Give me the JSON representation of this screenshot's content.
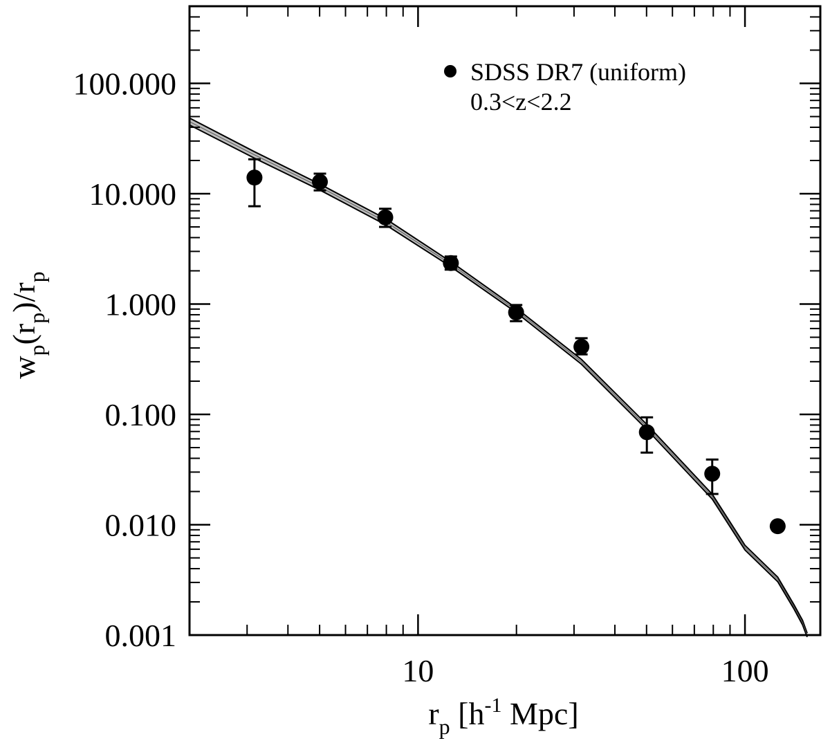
{
  "chart_data": {
    "type": "scatter",
    "xscale": "log",
    "yscale": "log",
    "xlim": [
      2.0,
      170.0
    ],
    "ylim": [
      0.001,
      500.0
    ],
    "xlabel": {
      "main": "r",
      "sub": "p",
      "bracket_open": " [h",
      "sup": "-1",
      "rest": " Mpc]"
    },
    "ylabel": {
      "w": "w",
      "sub1": "p",
      "paren_open": "(r",
      "sub2": "p",
      "paren_close": ")/r",
      "sub3": "p"
    },
    "x_major_ticks": [
      10,
      100
    ],
    "x_tick_labels": [
      "10",
      "100"
    ],
    "y_major_ticks": [
      0.001,
      0.01,
      0.1,
      1.0,
      10.0,
      100.0
    ],
    "y_tick_labels": [
      "0.001",
      "0.010",
      "0.100",
      "1.000",
      "10.000",
      "100.000"
    ],
    "legend": {
      "position": "top-right",
      "entries": [
        "SDSS DR7 (uniform)"
      ],
      "annotation": "0.3<z<2.2"
    },
    "series": [
      {
        "name": "SDSS DR7 (uniform)",
        "marker": "filled-circle",
        "points": [
          {
            "x": 3.16,
            "y": 14.0,
            "ylow": 7.7,
            "yhigh": 20.5
          },
          {
            "x": 5.01,
            "y": 12.8,
            "ylow": 10.7,
            "yhigh": 15.2
          },
          {
            "x": 7.94,
            "y": 6.1,
            "ylow": 5.0,
            "yhigh": 7.3
          },
          {
            "x": 12.6,
            "y": 2.35,
            "ylow": 2.05,
            "yhigh": 2.7
          },
          {
            "x": 19.95,
            "y": 0.84,
            "ylow": 0.7,
            "yhigh": 0.98
          },
          {
            "x": 31.6,
            "y": 0.41,
            "ylow": 0.35,
            "yhigh": 0.49
          },
          {
            "x": 50.1,
            "y": 0.069,
            "ylow": 0.045,
            "yhigh": 0.094
          },
          {
            "x": 79.4,
            "y": 0.029,
            "ylow": 0.019,
            "yhigh": 0.039
          },
          {
            "x": 125.9,
            "y": 0.0097,
            "ylow": 0.0097,
            "yhigh": 0.0097
          }
        ]
      },
      {
        "marker": "line-band",
        "color": "#000000",
        "points": [
          {
            "x": 2.0,
            "y": 45.0,
            "ylow": 42.0,
            "yhigh": 48.5
          },
          {
            "x": 3.16,
            "y": 22.5,
            "ylow": 21.0,
            "yhigh": 24.0
          },
          {
            "x": 5.01,
            "y": 11.5,
            "ylow": 10.8,
            "yhigh": 12.2
          },
          {
            "x": 7.94,
            "y": 5.6,
            "ylow": 5.25,
            "yhigh": 5.95
          },
          {
            "x": 12.6,
            "y": 2.3,
            "ylow": 2.18,
            "yhigh": 2.42
          },
          {
            "x": 19.95,
            "y": 0.88,
            "ylow": 0.84,
            "yhigh": 0.92
          },
          {
            "x": 31.6,
            "y": 0.3,
            "ylow": 0.285,
            "yhigh": 0.315
          },
          {
            "x": 50.1,
            "y": 0.077,
            "ylow": 0.073,
            "yhigh": 0.081
          },
          {
            "x": 79.4,
            "y": 0.018,
            "ylow": 0.0171,
            "yhigh": 0.0189
          },
          {
            "x": 100.0,
            "y": 0.0062,
            "ylow": 0.0059,
            "yhigh": 0.0065
          },
          {
            "x": 125.9,
            "y": 0.0032,
            "ylow": 0.00305,
            "yhigh": 0.00335
          },
          {
            "x": 141.3,
            "y": 0.0018,
            "ylow": 0.00172,
            "yhigh": 0.00188
          },
          {
            "x": 150.0,
            "y": 0.0013,
            "ylow": 0.00124,
            "yhigh": 0.00136
          },
          {
            "x": 155.0,
            "y": 0.001,
            "ylow": 0.00096,
            "yhigh": 0.00104
          }
        ]
      }
    ]
  }
}
